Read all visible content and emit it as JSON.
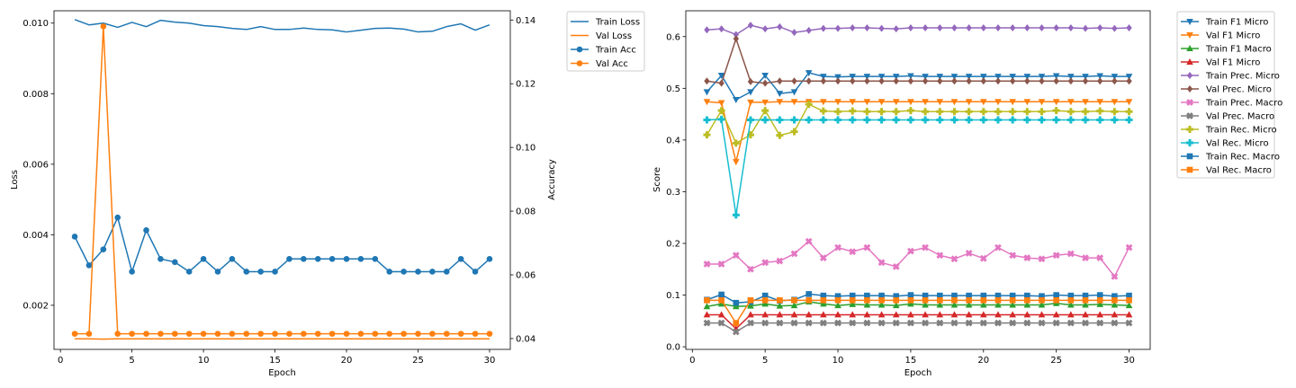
{
  "chart_data": [
    {
      "type": "line",
      "title": "",
      "xlabel": "Epoch",
      "ylabel": "Loss",
      "y2label": "Accuracy",
      "xlim": [
        -0.45,
        31.45
      ],
      "ylim": [
        0.00075,
        0.01035
      ],
      "y2lim": [
        0.0366,
        0.1429
      ],
      "xticks": [
        0,
        5,
        10,
        15,
        20,
        25,
        30
      ],
      "yticks": [
        0.002,
        0.004,
        0.006,
        0.008,
        0.01
      ],
      "ytick_labels": [
        "0.002",
        "0.004",
        "0.006",
        "0.008",
        "0.010"
      ],
      "y2ticks": [
        0.04,
        0.06,
        0.08,
        0.1,
        0.12,
        0.14
      ],
      "y2tick_labels": [
        "0.04",
        "0.06",
        "0.08",
        "0.10",
        "0.12",
        "0.14"
      ],
      "grid": false,
      "legend_position": "outside-top-right",
      "x": [
        1,
        2,
        3,
        4,
        5,
        6,
        7,
        8,
        9,
        10,
        11,
        12,
        13,
        14,
        15,
        16,
        17,
        18,
        19,
        20,
        21,
        22,
        23,
        24,
        25,
        26,
        27,
        28,
        29,
        30
      ],
      "series": [
        {
          "name": "Train Loss",
          "axis": "left",
          "color": "#1f77b4",
          "marker": "none",
          "values": [
            0.0101,
            0.00995,
            0.01,
            0.00988,
            0.01002,
            0.0099,
            0.01008,
            0.01003,
            0.01,
            0.00993,
            0.0099,
            0.00985,
            0.00982,
            0.0099,
            0.00982,
            0.00982,
            0.00986,
            0.00982,
            0.00981,
            0.00975,
            0.0098,
            0.00985,
            0.00986,
            0.00983,
            0.00975,
            0.00977,
            0.0099,
            0.00998,
            0.0098,
            0.00995
          ]
        },
        {
          "name": "Val Loss",
          "axis": "left",
          "color": "#ff7f0e",
          "marker": "none",
          "values": [
            0.00105,
            0.00105,
            0.00104,
            0.00105,
            0.00105,
            0.00105,
            0.00105,
            0.00105,
            0.00105,
            0.00105,
            0.00105,
            0.00105,
            0.00105,
            0.00105,
            0.00105,
            0.00105,
            0.00105,
            0.00105,
            0.00105,
            0.00105,
            0.00105,
            0.00105,
            0.00105,
            0.00105,
            0.00105,
            0.00105,
            0.00105,
            0.00105,
            0.00105,
            0.00105
          ]
        },
        {
          "name": "Train Acc",
          "axis": "right",
          "color": "#1f77b4",
          "marker": "circle",
          "values": [
            0.072,
            0.063,
            0.068,
            0.078,
            0.061,
            0.074,
            0.065,
            0.064,
            0.061,
            0.065,
            0.061,
            0.065,
            0.061,
            0.061,
            0.061,
            0.065,
            0.065,
            0.065,
            0.065,
            0.065,
            0.065,
            0.065,
            0.061,
            0.061,
            0.061,
            0.061,
            0.061,
            0.065,
            0.061,
            0.065
          ]
        },
        {
          "name": "Val Acc",
          "axis": "right",
          "color": "#ff7f0e",
          "marker": "circle",
          "values": [
            0.0415,
            0.0415,
            0.138,
            0.0415,
            0.0415,
            0.0415,
            0.0415,
            0.0415,
            0.0415,
            0.0415,
            0.0415,
            0.0415,
            0.0415,
            0.0415,
            0.0415,
            0.0415,
            0.0415,
            0.0415,
            0.0415,
            0.0415,
            0.0415,
            0.0415,
            0.0415,
            0.0415,
            0.0415,
            0.0415,
            0.0415,
            0.0415,
            0.0415,
            0.0415
          ]
        }
      ]
    },
    {
      "type": "line",
      "title": "",
      "xlabel": "Epoch",
      "ylabel": "Score",
      "xlim": [
        -0.45,
        31.45
      ],
      "ylim": [
        -0.005,
        0.65
      ],
      "xticks": [
        0,
        5,
        10,
        15,
        20,
        25,
        30
      ],
      "yticks": [
        0.0,
        0.1,
        0.2,
        0.3,
        0.4,
        0.5,
        0.6
      ],
      "ytick_labels": [
        "0.0",
        "0.1",
        "0.2",
        "0.3",
        "0.4",
        "0.5",
        "0.6"
      ],
      "grid": false,
      "legend_position": "outside-top-right",
      "x": [
        1,
        2,
        3,
        4,
        5,
        6,
        7,
        8,
        9,
        10,
        11,
        12,
        13,
        14,
        15,
        16,
        17,
        18,
        19,
        20,
        21,
        22,
        23,
        24,
        25,
        26,
        27,
        28,
        29,
        30
      ],
      "series": [
        {
          "name": "Train F1 Micro",
          "color": "#1f77b4",
          "marker": "tri-down",
          "values": [
            0.493,
            0.525,
            0.478,
            0.493,
            0.525,
            0.49,
            0.493,
            0.53,
            0.523,
            0.522,
            0.523,
            0.523,
            0.523,
            0.523,
            0.524,
            0.523,
            0.523,
            0.523,
            0.523,
            0.523,
            0.523,
            0.523,
            0.523,
            0.523,
            0.524,
            0.523,
            0.523,
            0.524,
            0.523,
            0.523
          ]
        },
        {
          "name": "Val F1 Micro",
          "color": "#ff7f0e",
          "marker": "tri-down",
          "values": [
            0.474,
            0.472,
            0.358,
            0.473,
            0.473,
            0.474,
            0.474,
            0.474,
            0.474,
            0.474,
            0.474,
            0.474,
            0.474,
            0.474,
            0.474,
            0.474,
            0.474,
            0.474,
            0.474,
            0.474,
            0.474,
            0.474,
            0.474,
            0.474,
            0.474,
            0.474,
            0.474,
            0.474,
            0.474,
            0.474
          ]
        },
        {
          "name": "Train F1 Macro",
          "color": "#2ca02c",
          "marker": "tri-up",
          "values": [
            0.078,
            0.083,
            0.078,
            0.079,
            0.083,
            0.079,
            0.08,
            0.087,
            0.083,
            0.08,
            0.082,
            0.081,
            0.081,
            0.08,
            0.083,
            0.081,
            0.081,
            0.081,
            0.081,
            0.081,
            0.081,
            0.081,
            0.081,
            0.081,
            0.084,
            0.081,
            0.081,
            0.082,
            0.081,
            0.08
          ]
        },
        {
          "name": "Val F1 Micro",
          "color": "#d62728",
          "marker": "tri-up",
          "values": [
            0.062,
            0.062,
            0.035,
            0.062,
            0.062,
            0.062,
            0.062,
            0.062,
            0.062,
            0.062,
            0.062,
            0.062,
            0.062,
            0.062,
            0.062,
            0.062,
            0.062,
            0.062,
            0.062,
            0.062,
            0.062,
            0.062,
            0.062,
            0.062,
            0.062,
            0.062,
            0.062,
            0.062,
            0.062,
            0.062
          ]
        },
        {
          "name": "Train Prec. Micro",
          "color": "#9467bd",
          "marker": "diamond",
          "values": [
            0.613,
            0.615,
            0.604,
            0.622,
            0.615,
            0.619,
            0.608,
            0.612,
            0.616,
            0.616,
            0.617,
            0.617,
            0.616,
            0.615,
            0.617,
            0.617,
            0.617,
            0.617,
            0.617,
            0.617,
            0.617,
            0.617,
            0.617,
            0.617,
            0.617,
            0.617,
            0.616,
            0.617,
            0.616,
            0.617
          ]
        },
        {
          "name": "Val Prec. Micro",
          "color": "#8c564b",
          "marker": "diamond",
          "values": [
            0.514,
            0.51,
            0.596,
            0.513,
            0.51,
            0.514,
            0.514,
            0.514,
            0.514,
            0.514,
            0.514,
            0.514,
            0.514,
            0.514,
            0.514,
            0.514,
            0.514,
            0.514,
            0.514,
            0.514,
            0.514,
            0.514,
            0.514,
            0.514,
            0.514,
            0.514,
            0.514,
            0.514,
            0.514,
            0.514
          ]
        },
        {
          "name": "Train Prec. Macro",
          "color": "#e377c2",
          "marker": "x-filled",
          "values": [
            0.16,
            0.16,
            0.177,
            0.15,
            0.163,
            0.166,
            0.18,
            0.204,
            0.172,
            0.192,
            0.184,
            0.192,
            0.163,
            0.155,
            0.185,
            0.192,
            0.177,
            0.17,
            0.181,
            0.171,
            0.192,
            0.177,
            0.172,
            0.17,
            0.177,
            0.18,
            0.172,
            0.172,
            0.136,
            0.192
          ]
        },
        {
          "name": "Val Prec. Macro",
          "color": "#7f7f7f",
          "marker": "x-filled",
          "values": [
            0.046,
            0.046,
            0.029,
            0.046,
            0.046,
            0.046,
            0.046,
            0.046,
            0.046,
            0.046,
            0.046,
            0.046,
            0.046,
            0.046,
            0.046,
            0.046,
            0.046,
            0.046,
            0.046,
            0.046,
            0.046,
            0.046,
            0.046,
            0.046,
            0.046,
            0.046,
            0.046,
            0.046,
            0.046,
            0.046
          ]
        },
        {
          "name": "Train Rec. Micro",
          "color": "#bcbd22",
          "marker": "plus-filled",
          "values": [
            0.41,
            0.457,
            0.394,
            0.41,
            0.457,
            0.409,
            0.416,
            0.469,
            0.456,
            0.455,
            0.456,
            0.455,
            0.455,
            0.455,
            0.457,
            0.455,
            0.455,
            0.455,
            0.455,
            0.455,
            0.455,
            0.455,
            0.455,
            0.455,
            0.457,
            0.455,
            0.455,
            0.456,
            0.455,
            0.455
          ]
        },
        {
          "name": "Val Rec. Micro",
          "color": "#17becf",
          "marker": "plus-filled",
          "values": [
            0.439,
            0.44,
            0.255,
            0.439,
            0.439,
            0.439,
            0.439,
            0.439,
            0.439,
            0.439,
            0.439,
            0.439,
            0.439,
            0.439,
            0.439,
            0.439,
            0.439,
            0.439,
            0.439,
            0.439,
            0.439,
            0.439,
            0.439,
            0.439,
            0.439,
            0.439,
            0.439,
            0.439,
            0.439,
            0.439
          ]
        },
        {
          "name": "Train Rec. Macro",
          "color": "#1f77b4",
          "marker": "square",
          "values": [
            0.091,
            0.101,
            0.085,
            0.087,
            0.099,
            0.089,
            0.091,
            0.102,
            0.099,
            0.098,
            0.099,
            0.099,
            0.099,
            0.098,
            0.1,
            0.099,
            0.099,
            0.099,
            0.099,
            0.099,
            0.099,
            0.099,
            0.099,
            0.098,
            0.1,
            0.099,
            0.099,
            0.1,
            0.098,
            0.099
          ]
        },
        {
          "name": "Val Rec. Macro",
          "color": "#ff7f0e",
          "marker": "square",
          "values": [
            0.09,
            0.09,
            0.046,
            0.09,
            0.09,
            0.09,
            0.09,
            0.09,
            0.09,
            0.09,
            0.09,
            0.09,
            0.09,
            0.09,
            0.09,
            0.09,
            0.09,
            0.09,
            0.09,
            0.09,
            0.09,
            0.09,
            0.09,
            0.09,
            0.09,
            0.09,
            0.09,
            0.09,
            0.09,
            0.09
          ]
        }
      ]
    }
  ]
}
